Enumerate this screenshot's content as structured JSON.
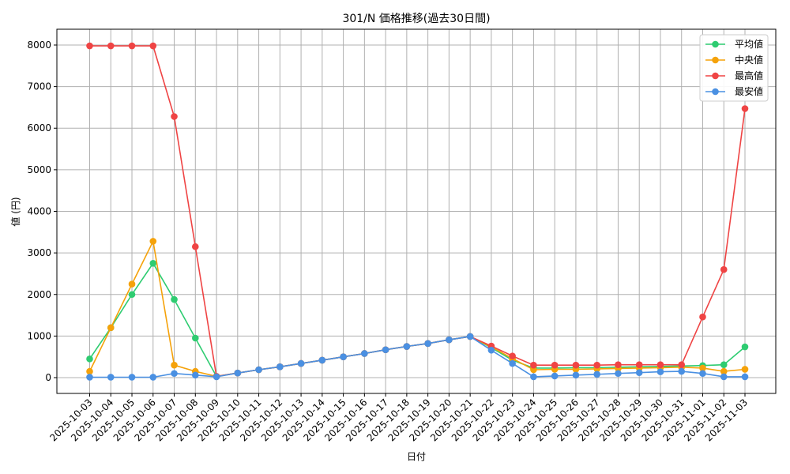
{
  "chart_data": {
    "type": "line",
    "title": "301/N 価格推移(過去30日間)",
    "xlabel": "日付",
    "ylabel": "値 (円)",
    "ylim": [
      -380,
      8380
    ],
    "yticks": [
      0,
      1000,
      2000,
      3000,
      4000,
      5000,
      6000,
      7000,
      8000
    ],
    "grid": true,
    "legend_position": "top-right",
    "categories": [
      "2025-10-03",
      "2025-10-04",
      "2025-10-05",
      "2025-10-06",
      "2025-10-07",
      "2025-10-08",
      "2025-10-09",
      "2025-10-10",
      "2025-10-11",
      "2025-10-12",
      "2025-10-13",
      "2025-10-14",
      "2025-10-15",
      "2025-10-16",
      "2025-10-17",
      "2025-10-18",
      "2025-10-19",
      "2025-10-20",
      "2025-10-21",
      "2025-10-22",
      "2025-10-23",
      "2025-10-24",
      "2025-10-25",
      "2025-10-26",
      "2025-10-27",
      "2025-10-28",
      "2025-10-29",
      "2025-10-30",
      "2025-10-31",
      "2025-11-01",
      "2025-11-02",
      "2025-11-03"
    ],
    "series": [
      {
        "name": "平均値",
        "color": "#2ecc71",
        "values": [
          450,
          1200,
          2000,
          2750,
          1880,
          950,
          30,
          110,
          190,
          260,
          340,
          420,
          500,
          580,
          670,
          750,
          820,
          910,
          990,
          720,
          420,
          230,
          230,
          240,
          240,
          250,
          260,
          270,
          280,
          290,
          310,
          740
        ]
      },
      {
        "name": "中央値",
        "color": "#f5a20a",
        "values": [
          150,
          1200,
          2250,
          3280,
          300,
          150,
          30,
          110,
          190,
          260,
          340,
          420,
          500,
          580,
          670,
          750,
          820,
          910,
          990,
          740,
          460,
          190,
          200,
          200,
          210,
          220,
          230,
          240,
          250,
          230,
          150,
          200
        ]
      },
      {
        "name": "最高値",
        "color": "#ef4444",
        "values": [
          7980,
          7980,
          7980,
          7980,
          6280,
          3150,
          30,
          110,
          190,
          260,
          340,
          420,
          500,
          580,
          670,
          750,
          820,
          910,
          990,
          760,
          520,
          300,
          300,
          300,
          300,
          310,
          310,
          310,
          310,
          1460,
          2600,
          6470
        ]
      },
      {
        "name": "最安値",
        "color": "#4a90e2",
        "values": [
          10,
          10,
          10,
          10,
          100,
          60,
          20,
          110,
          190,
          260,
          340,
          420,
          500,
          580,
          670,
          750,
          820,
          910,
          990,
          660,
          340,
          20,
          40,
          60,
          80,
          100,
          120,
          140,
          150,
          100,
          20,
          20
        ]
      }
    ]
  }
}
